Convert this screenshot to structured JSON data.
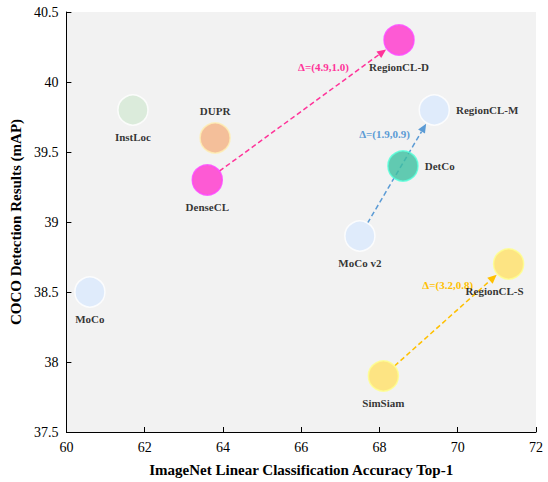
{
  "chart_data": {
    "type": "scatter",
    "xlabel": "ImageNet Linear Classification Accuracy Top-1",
    "ylabel": "COCO Detection Results (mAP)",
    "labels": [
      "MoCo",
      "InstLoc",
      "DUPR",
      "DenseCL",
      "RegionCL-D",
      "MoCo v2",
      "RegionCL-M",
      "DetCo",
      "SimSiam",
      "RegionCL-S"
    ],
    "x": [
      60.6,
      61.7,
      63.8,
      63.6,
      68.5,
      67.5,
      69.4,
      68.6,
      68.1,
      71.3
    ],
    "values": [
      38.5,
      39.8,
      39.6,
      39.3,
      40.3,
      38.9,
      39.8,
      39.4,
      37.9,
      38.7
    ],
    "colors": [
      "#dae8fc",
      "#d5e8d4",
      "#f4b183",
      "#ff33cc",
      "#ff33cc",
      "#dae8fc",
      "#dae8fc",
      "#3cbfa0",
      "#ffe066",
      "#ffe066"
    ],
    "xlim": [
      60,
      72
    ],
    "xticks": [
      60,
      62,
      64,
      66,
      68,
      70,
      72
    ],
    "ylim": [
      37.5,
      40.5
    ],
    "yticks": [
      37.5,
      38,
      38.5,
      39,
      39.5,
      40,
      40.5
    ],
    "grid": false,
    "annotations": [
      {
        "from": "DenseCL",
        "to": "RegionCL-D",
        "text": "Δ=(4.9,1.0)",
        "color": "#ff3399"
      },
      {
        "from": "MoCo v2",
        "to": "RegionCL-M",
        "text": "Δ=(1.9,0.9)",
        "color": "#5b9bd5"
      },
      {
        "from": "SimSiam",
        "to": "RegionCL-S",
        "text": "Δ=(3.2,0.8)",
        "color": "#ffc000"
      }
    ]
  }
}
